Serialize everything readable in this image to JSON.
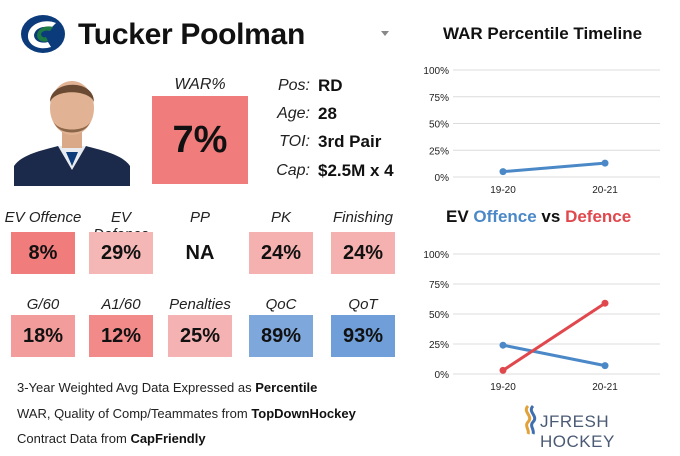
{
  "player": {
    "name": "Tucker Poolman"
  },
  "war": {
    "label": "WAR%",
    "value": "7%"
  },
  "info": [
    {
      "label": "Pos:",
      "value": "RD"
    },
    {
      "label": "Age:",
      "value": "28"
    },
    {
      "label": "TOI:",
      "value": "3rd Pair"
    },
    {
      "label": "Cap:",
      "value": "$2.5M x 4"
    }
  ],
  "metrics": [
    {
      "label": "EV Offence",
      "value": "8%",
      "color": "#f17c7c"
    },
    {
      "label": "EV Defence",
      "value": "29%",
      "color": "#f5b6b6"
    },
    {
      "label": "PP",
      "value": "NA",
      "color": "#ffffff"
    },
    {
      "label": "PK",
      "value": "24%",
      "color": "#f5b0b0"
    },
    {
      "label": "Finishing",
      "value": "24%",
      "color": "#f5b0b0"
    },
    {
      "label": "G/60",
      "value": "18%",
      "color": "#f39c9c"
    },
    {
      "label": "A1/60",
      "value": "12%",
      "color": "#f28a8a"
    },
    {
      "label": "Penalties",
      "value": "25%",
      "color": "#f5b2b2"
    },
    {
      "label": "QoC",
      "value": "89%",
      "color": "#7ea7dc"
    },
    {
      "label": "QoT",
      "value": "93%",
      "color": "#6f9ed8"
    }
  ],
  "footer": {
    "line1_prefix": "3-Year Weighted Avg Data Expressed as ",
    "line1_bold": "Percentile",
    "line2_prefix": "WAR, Quality of Comp/Teammates from ",
    "line2_bold": "TopDownHockey",
    "line3_prefix": "Contract Data from ",
    "line3_bold": "CapFriendly"
  },
  "brand": {
    "text": "JFRESH HOCKEY"
  },
  "colors": {
    "offence": "#4b88c7",
    "defence": "#e0484d",
    "grid": "#dcdcdc"
  },
  "chart_data": [
    {
      "type": "line",
      "title": "WAR Percentile Timeline",
      "categories": [
        "19-20",
        "20-21"
      ],
      "series": [
        {
          "name": "WAR",
          "values": [
            5,
            13
          ]
        }
      ],
      "ylim": [
        0,
        100
      ],
      "yticks": [
        "0%",
        "25%",
        "50%",
        "75%",
        "100%"
      ],
      "xlabel": "",
      "ylabel": ""
    },
    {
      "type": "line",
      "title_parts": {
        "prefix": "EV ",
        "offence": "Offence",
        "vs": " vs ",
        "defence": "Defence"
      },
      "categories": [
        "19-20",
        "20-21"
      ],
      "series": [
        {
          "name": "Offence",
          "values": [
            24,
            7
          ]
        },
        {
          "name": "Defence",
          "values": [
            3,
            59
          ]
        }
      ],
      "ylim": [
        0,
        100
      ],
      "yticks": [
        "0%",
        "25%",
        "50%",
        "75%",
        "100%"
      ],
      "xlabel": "",
      "ylabel": ""
    }
  ]
}
